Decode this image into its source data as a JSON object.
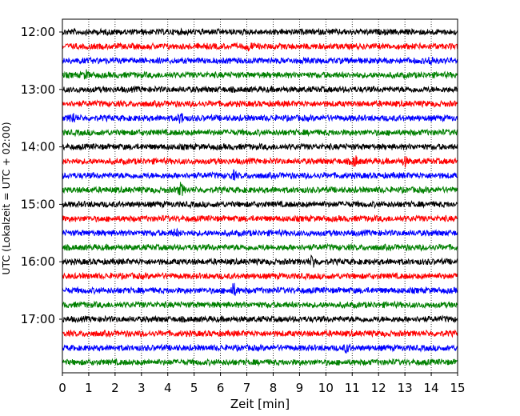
{
  "chart_data": {
    "type": "line",
    "title": "",
    "xlabel": "Zeit  [min]",
    "ylabel": "UTC (Lokalzeit = UTC + 02:00)",
    "xlim": [
      0,
      15
    ],
    "x_ticks": [
      "0",
      "1",
      "2",
      "3",
      "4",
      "5",
      "6",
      "7",
      "8",
      "9",
      "10",
      "11",
      "12",
      "13",
      "14",
      "15"
    ],
    "y_ticks": [
      "12:00",
      "13:00",
      "14:00",
      "15:00",
      "16:00",
      "17:00"
    ],
    "grid": "vertical dotted lines at each minute",
    "trace_colors": [
      "#000000",
      "#ff0000",
      "#0000ff",
      "#008000"
    ],
    "series": [
      {
        "start": "12:00",
        "color": "#000000",
        "events": []
      },
      {
        "start": "12:15",
        "color": "#ff0000",
        "events": [
          {
            "t": 7.1,
            "amp": 0.6
          }
        ]
      },
      {
        "start": "12:30",
        "color": "#0000ff",
        "events": [
          {
            "t": 14.0,
            "amp": 0.7
          }
        ]
      },
      {
        "start": "12:45",
        "color": "#008000",
        "events": [
          {
            "t": 0.9,
            "amp": 0.5
          }
        ]
      },
      {
        "start": "13:00",
        "color": "#000000",
        "events": []
      },
      {
        "start": "13:15",
        "color": "#ff0000",
        "events": []
      },
      {
        "start": "13:30",
        "color": "#0000ff",
        "events": [
          {
            "t": 0.4,
            "amp": 0.8
          },
          {
            "t": 4.5,
            "amp": 0.8
          }
        ]
      },
      {
        "start": "13:45",
        "color": "#008000",
        "events": []
      },
      {
        "start": "14:00",
        "color": "#000000",
        "events": []
      },
      {
        "start": "14:15",
        "color": "#ff0000",
        "events": [
          {
            "t": 11.1,
            "amp": 0.9
          },
          {
            "t": 13.0,
            "amp": 0.6
          }
        ]
      },
      {
        "start": "14:30",
        "color": "#0000ff",
        "events": [
          {
            "t": 6.5,
            "amp": 0.5
          }
        ]
      },
      {
        "start": "14:45",
        "color": "#008000",
        "events": [
          {
            "t": 4.5,
            "amp": 1.0
          }
        ]
      },
      {
        "start": "15:00",
        "color": "#000000",
        "events": []
      },
      {
        "start": "15:15",
        "color": "#ff0000",
        "events": []
      },
      {
        "start": "15:30",
        "color": "#0000ff",
        "events": [
          {
            "t": 4.3,
            "amp": 0.5
          }
        ]
      },
      {
        "start": "15:45",
        "color": "#008000",
        "events": []
      },
      {
        "start": "16:00",
        "color": "#000000",
        "events": [
          {
            "t": 9.5,
            "amp": 1.0
          }
        ]
      },
      {
        "start": "16:15",
        "color": "#ff0000",
        "events": []
      },
      {
        "start": "16:30",
        "color": "#0000ff",
        "events": [
          {
            "t": 6.5,
            "amp": 1.0
          }
        ]
      },
      {
        "start": "16:45",
        "color": "#008000",
        "events": []
      },
      {
        "start": "17:00",
        "color": "#000000",
        "events": []
      },
      {
        "start": "17:15",
        "color": "#ff0000",
        "events": []
      },
      {
        "start": "17:30",
        "color": "#0000ff",
        "events": [
          {
            "t": 10.8,
            "amp": 0.6
          }
        ]
      },
      {
        "start": "17:45",
        "color": "#008000",
        "events": []
      }
    ]
  }
}
